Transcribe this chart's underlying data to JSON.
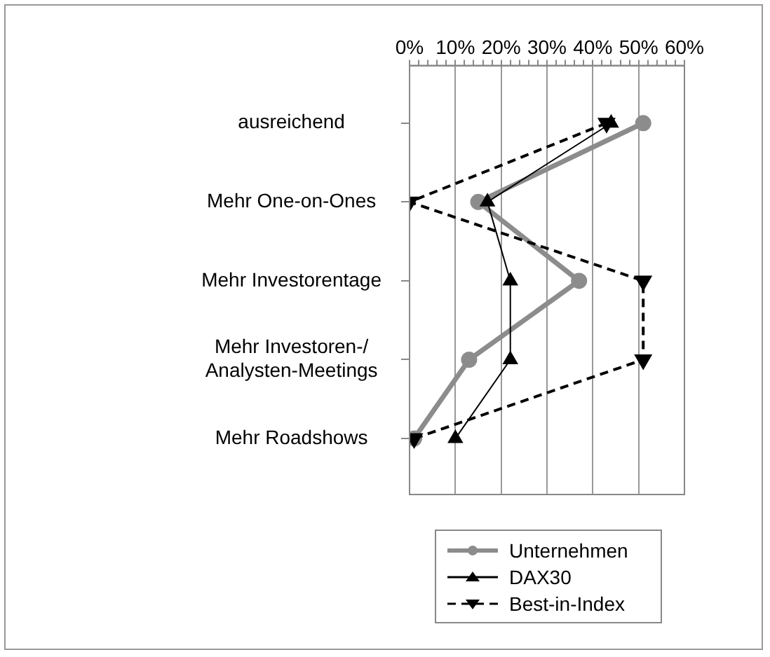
{
  "chart_data": {
    "type": "line",
    "orientation": "horizontal",
    "categories": [
      "ausreichend",
      "Mehr One-on-Ones",
      "Mehr Investorentage",
      "Mehr Investoren-/\nAnalysten-Meetings",
      "Mehr Roadshows"
    ],
    "series": [
      {
        "name": "Unternehmen",
        "color": "#8c8c8c",
        "marker": "circle",
        "line_style": "solid",
        "values": [
          51,
          15,
          37,
          13,
          1
        ]
      },
      {
        "name": "DAX30",
        "color": "#000000",
        "marker": "triangle",
        "line_style": "solid",
        "values": [
          44,
          17,
          22,
          22,
          10
        ]
      },
      {
        "name": "Best-in-Index",
        "color": "#000000",
        "marker": "triangle-down",
        "line_style": "dashed",
        "values": [
          43,
          0,
          51,
          51,
          1
        ]
      }
    ],
    "xlim": [
      0,
      60
    ],
    "xticks": [
      {
        "value": 0,
        "label": "0%"
      },
      {
        "value": 2,
        "label": null
      },
      {
        "value": 4,
        "label": null
      },
      {
        "value": 6,
        "label": null
      },
      {
        "value": 8,
        "label": null
      },
      {
        "value": 10,
        "label": "10%"
      },
      {
        "value": 12,
        "label": null
      },
      {
        "value": 14,
        "label": null
      },
      {
        "value": 16,
        "label": null
      },
      {
        "value": 18,
        "label": null
      },
      {
        "value": 20,
        "label": "20%"
      },
      {
        "value": 22,
        "label": null
      },
      {
        "value": 24,
        "label": null
      },
      {
        "value": 26,
        "label": null
      },
      {
        "value": 28,
        "label": null
      },
      {
        "value": 30,
        "label": "30%"
      },
      {
        "value": 32,
        "label": null
      },
      {
        "value": 34,
        "label": null
      },
      {
        "value": 36,
        "label": null
      },
      {
        "value": 38,
        "label": null
      },
      {
        "value": 40,
        "label": "40%"
      },
      {
        "value": 42,
        "label": null
      },
      {
        "value": 44,
        "label": null
      },
      {
        "value": 46,
        "label": null
      },
      {
        "value": 48,
        "label": null
      },
      {
        "value": 50,
        "label": "50%"
      },
      {
        "value": 52,
        "label": null
      },
      {
        "value": 54,
        "label": null
      },
      {
        "value": 56,
        "label": null
      },
      {
        "value": 58,
        "label": null
      },
      {
        "value": 60,
        "label": "60%"
      }
    ],
    "grid": "x",
    "legend": "bottom"
  }
}
